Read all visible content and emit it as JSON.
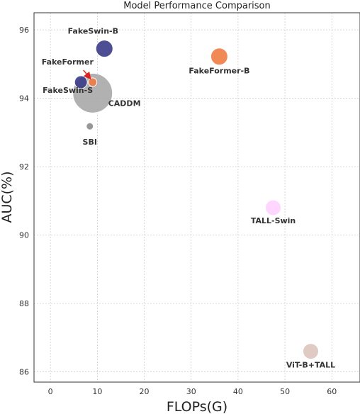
{
  "chart_data": {
    "type": "scatter",
    "title": "Model Performance Comparison",
    "xlabel": "FLOPs(G)",
    "ylabel": "AUC(%)",
    "xlim": [
      -3.5,
      66
    ],
    "ylim": [
      85.7,
      96.5
    ],
    "xticks": [
      0,
      10,
      20,
      30,
      40,
      50,
      60
    ],
    "yticks": [
      86,
      88,
      90,
      92,
      94,
      96
    ],
    "grid": true,
    "points": [
      {
        "label": "CADDM",
        "x": 9.0,
        "y": 94.15,
        "color": "#a9a9a9",
        "size": 28
      },
      {
        "label": "SBI",
        "x": 8.4,
        "y": 93.18,
        "color": "#8c8c8c",
        "size": 5
      },
      {
        "label": "FakeSwin-B",
        "x": 11.5,
        "y": 95.45,
        "color": "#3b3b8a",
        "size": 12
      },
      {
        "label": "FakeSwin-S",
        "x": 6.5,
        "y": 94.47,
        "color": "#3b3b8a",
        "size": 9
      },
      {
        "label": "FakeFormer",
        "x": 9.0,
        "y": 94.47,
        "color": "#f07c45",
        "size": 6
      },
      {
        "label": "FakeFormer-B",
        "x": 36.0,
        "y": 95.22,
        "color": "#f07c45",
        "size": 12
      },
      {
        "label": "TALL-Swin",
        "x": 47.5,
        "y": 90.8,
        "color": "#ffd2ff",
        "size": 11
      },
      {
        "label": "ViT-B+TALL",
        "x": 55.5,
        "y": 86.6,
        "color": "#dcc4be",
        "size": 11
      }
    ],
    "arrow": {
      "target": "FakeFormer",
      "color": "#e0201e"
    }
  }
}
